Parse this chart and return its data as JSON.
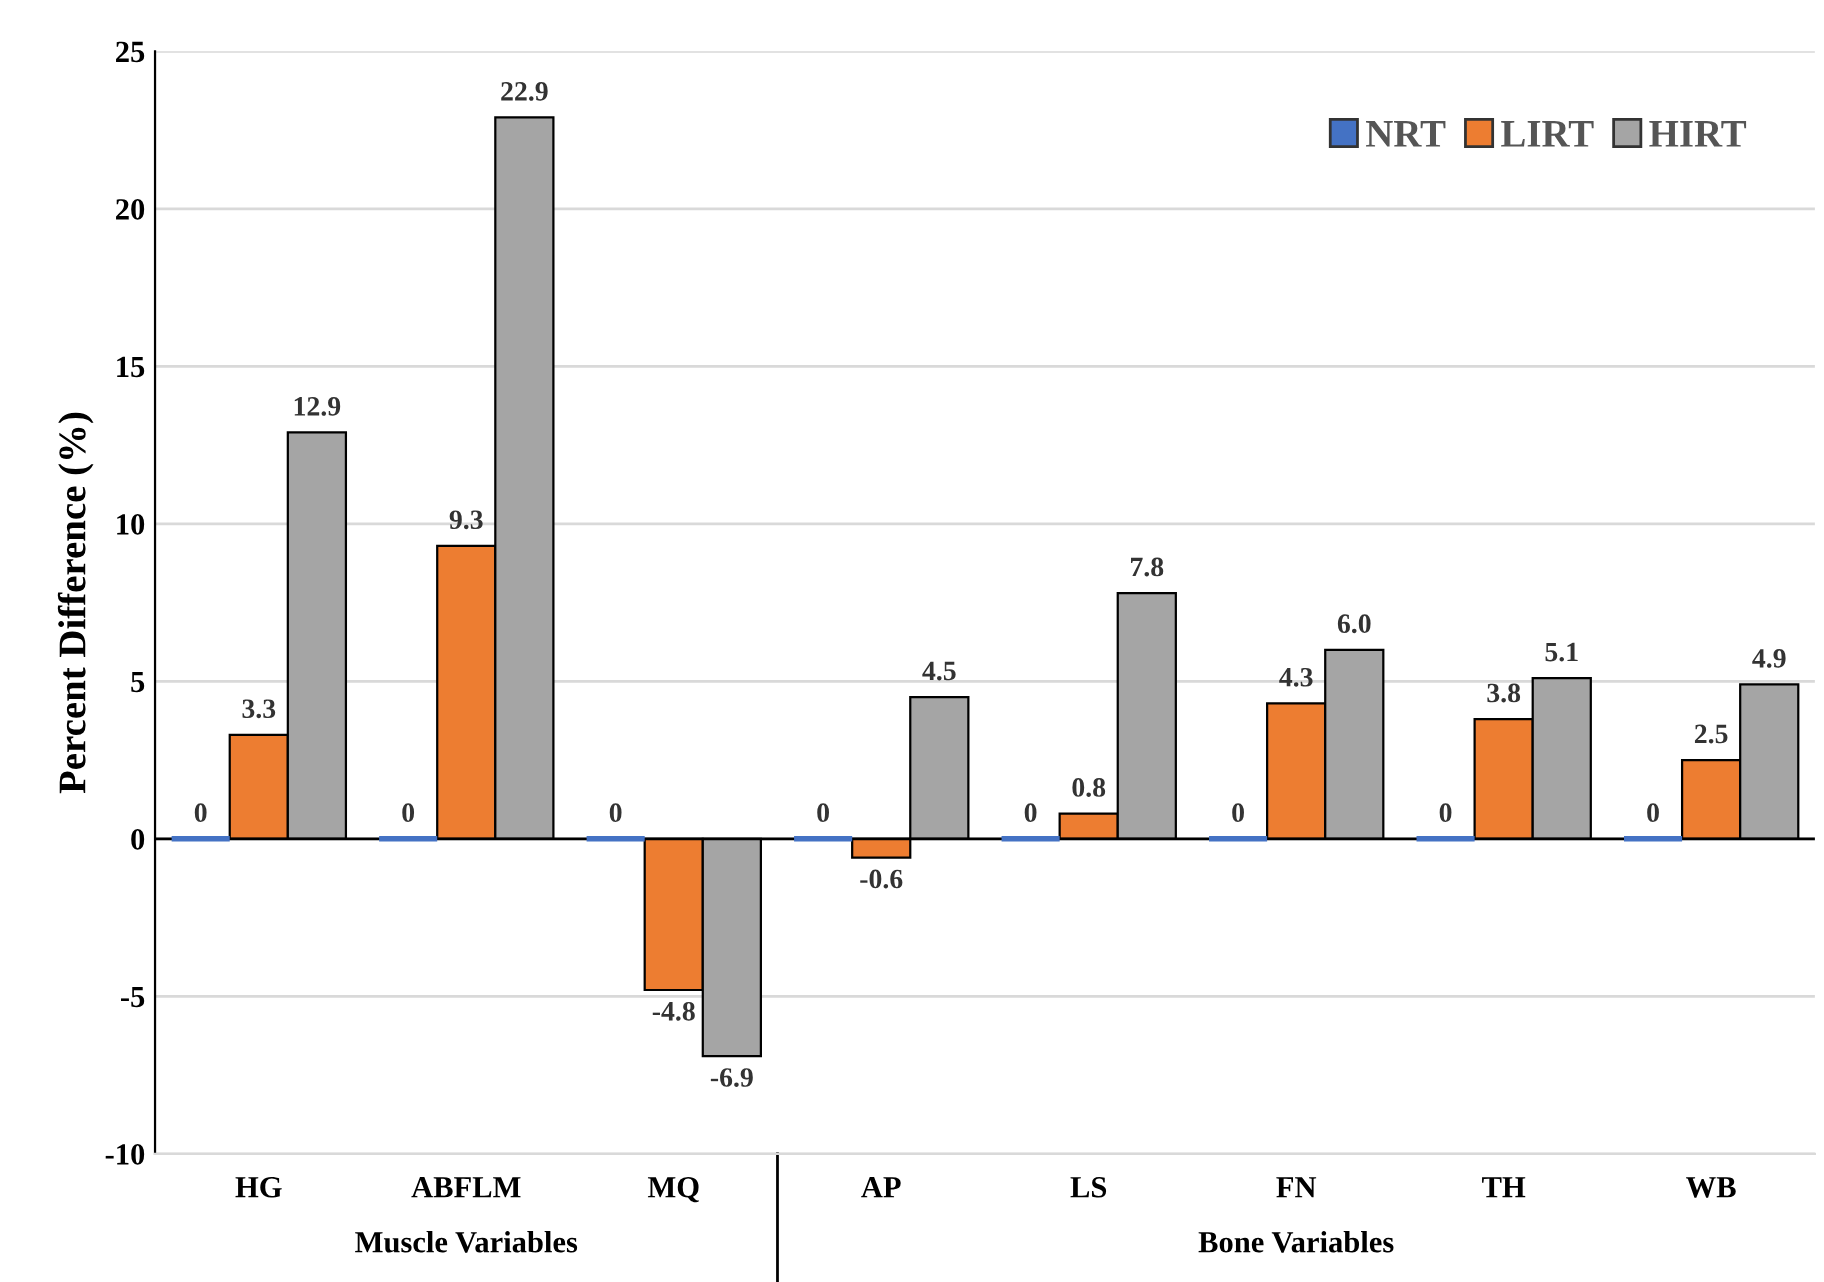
{
  "chart_data": {
    "type": "bar",
    "ylabel": "Percent Difference (%)",
    "categories": [
      "HG",
      "ABFLM",
      "MQ",
      "AP",
      "LS",
      "FN",
      "TH",
      "WB"
    ],
    "series": [
      {
        "name": "NRT",
        "color": "#4472c4",
        "values": [
          0,
          0,
          0,
          0,
          0,
          0,
          0,
          0
        ],
        "value_labels": [
          "0",
          "0",
          "0",
          "0",
          "0",
          "0",
          "0",
          "0"
        ]
      },
      {
        "name": "LIRT",
        "color": "#ed7d31",
        "values": [
          3.3,
          9.3,
          -4.8,
          -0.6,
          0.8,
          4.3,
          3.8,
          2.5
        ],
        "value_labels": [
          "3.3",
          "9.3",
          "-4.8",
          "-0.6",
          "0.8",
          "4.3",
          "3.8",
          "2.5"
        ]
      },
      {
        "name": "HIRT",
        "color": "#a5a5a5",
        "values": [
          12.9,
          22.9,
          -6.9,
          4.5,
          7.8,
          6.0,
          5.1,
          4.9
        ],
        "value_labels": [
          "12.9",
          "22.9",
          "-6.9",
          "4.5",
          "7.8",
          "6.0",
          "5.1",
          "4.9"
        ]
      }
    ],
    "ylim": [
      -10,
      25
    ],
    "yticks": [
      -10,
      -5,
      0,
      5,
      10,
      15,
      20,
      25
    ],
    "grid": "y",
    "legend": "top right",
    "ref_lines": [
      {
        "axis": "y",
        "value": 0,
        "color": "#000000"
      }
    ],
    "annotations": [
      "Muscle Variables",
      "Bone Variables"
    ]
  }
}
